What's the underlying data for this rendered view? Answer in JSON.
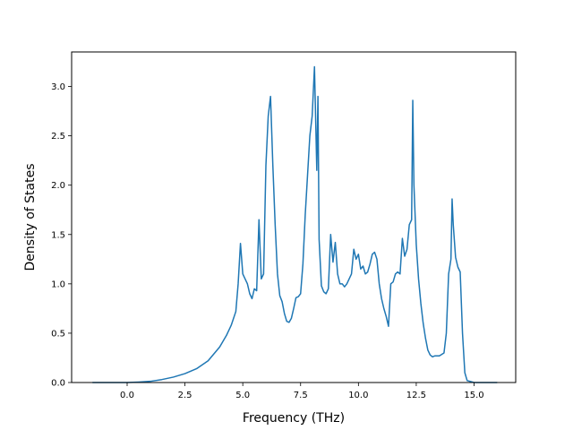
{
  "chart_data": {
    "type": "line",
    "title": "",
    "xlabel": "Frequency (THz)",
    "ylabel": "Density of States",
    "xlim": [
      -2.4,
      16.8
    ],
    "ylim": [
      0.0,
      3.35
    ],
    "xticks": [
      0.0,
      2.5,
      5.0,
      7.5,
      10.0,
      12.5,
      15.0
    ],
    "xtick_labels": [
      "0.0",
      "2.5",
      "5.0",
      "7.5",
      "10.0",
      "12.5",
      "15.0"
    ],
    "yticks": [
      0.0,
      0.5,
      1.0,
      1.5,
      2.0,
      2.5,
      3.0
    ],
    "ytick_labels": [
      "0.0",
      "0.5",
      "1.0",
      "1.5",
      "2.0",
      "2.5",
      "3.0"
    ],
    "grid": false,
    "legend": "none",
    "line_color": "#1f77b4",
    "series": [
      {
        "x": [
          -1.5,
          -1.0,
          -0.5,
          0.0,
          0.5,
          1.0,
          1.5,
          2.0,
          2.5,
          3.0,
          3.5,
          4.0,
          4.3,
          4.5,
          4.7,
          4.8,
          4.9,
          5.0,
          5.1,
          5.2,
          5.3,
          5.4,
          5.5,
          5.6,
          5.7,
          5.8,
          5.9,
          6.0,
          6.1,
          6.2,
          6.3,
          6.4,
          6.5,
          6.6,
          6.7,
          6.8,
          6.9,
          7.0,
          7.1,
          7.2,
          7.3,
          7.4,
          7.5,
          7.6,
          7.7,
          7.8,
          7.9,
          8.0,
          8.1,
          8.2,
          8.25,
          8.3,
          8.4,
          8.5,
          8.6,
          8.7,
          8.8,
          8.9,
          9.0,
          9.1,
          9.2,
          9.3,
          9.4,
          9.5,
          9.6,
          9.7,
          9.8,
          9.9,
          10.0,
          10.1,
          10.2,
          10.3,
          10.4,
          10.5,
          10.6,
          10.7,
          10.8,
          10.9,
          11.0,
          11.1,
          11.2,
          11.3,
          11.4,
          11.5,
          11.6,
          11.7,
          11.8,
          11.9,
          12.0,
          12.1,
          12.2,
          12.3,
          12.35,
          12.4,
          12.5,
          12.6,
          12.7,
          12.8,
          12.9,
          13.0,
          13.1,
          13.2,
          13.3,
          13.5,
          13.7,
          13.8,
          13.9,
          14.0,
          14.05,
          14.1,
          14.2,
          14.3,
          14.4,
          14.5,
          14.6,
          14.7,
          15.0,
          15.5,
          16.0
        ],
        "y": [
          0.0,
          0.0,
          0.0,
          0.0,
          0.005,
          0.012,
          0.03,
          0.055,
          0.09,
          0.14,
          0.22,
          0.36,
          0.48,
          0.58,
          0.72,
          1.0,
          1.41,
          1.1,
          1.05,
          1.0,
          0.9,
          0.85,
          0.95,
          0.93,
          1.65,
          1.05,
          1.1,
          2.2,
          2.7,
          2.9,
          2.2,
          1.6,
          1.1,
          0.88,
          0.82,
          0.7,
          0.62,
          0.61,
          0.65,
          0.75,
          0.86,
          0.87,
          0.9,
          1.2,
          1.7,
          2.1,
          2.5,
          2.7,
          3.2,
          2.15,
          2.9,
          1.45,
          0.98,
          0.92,
          0.9,
          0.95,
          1.5,
          1.22,
          1.42,
          1.1,
          1.0,
          1.0,
          0.97,
          1.0,
          1.05,
          1.1,
          1.35,
          1.25,
          1.3,
          1.15,
          1.18,
          1.1,
          1.12,
          1.2,
          1.3,
          1.32,
          1.25,
          1.0,
          0.85,
          0.75,
          0.67,
          0.57,
          1.0,
          1.02,
          1.1,
          1.12,
          1.1,
          1.46,
          1.28,
          1.35,
          1.6,
          1.65,
          2.86,
          2.0,
          1.4,
          1.05,
          0.8,
          0.6,
          0.45,
          0.33,
          0.28,
          0.26,
          0.27,
          0.27,
          0.3,
          0.5,
          1.1,
          1.25,
          1.86,
          1.6,
          1.27,
          1.17,
          1.12,
          0.5,
          0.1,
          0.02,
          0.0,
          0.0,
          0.0
        ]
      }
    ]
  }
}
